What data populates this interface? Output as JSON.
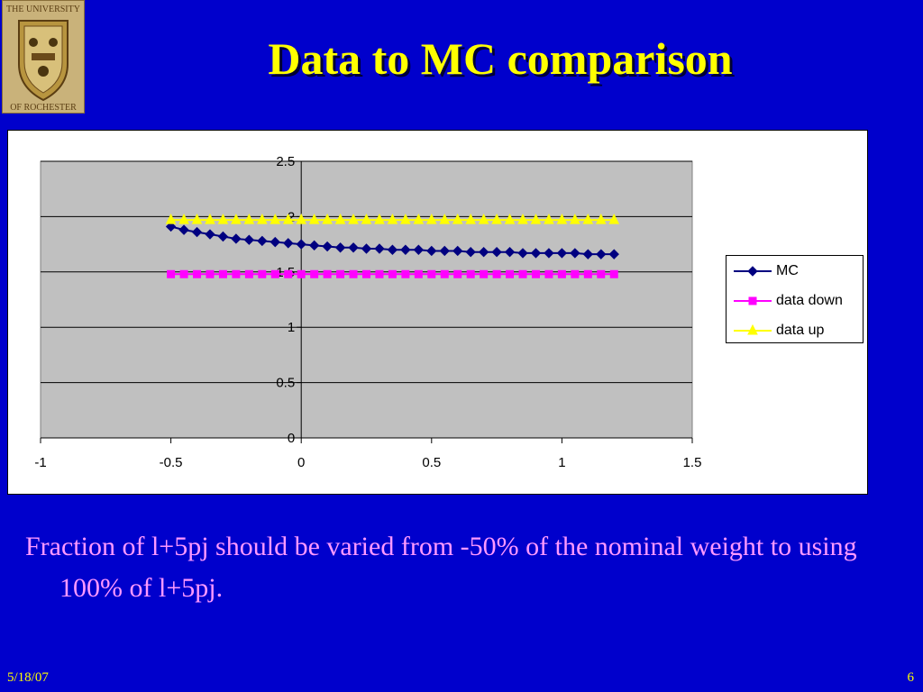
{
  "slide": {
    "title": "Data to MC comparison",
    "caption": "Fraction of l+5pj should be varied from -50% of the nominal weight to using 100% of l+5pj.",
    "date": "5/18/07",
    "page_number": "6"
  },
  "logo": {
    "top_text": "THE UNIVERSITY",
    "bottom_text": "OF ROCHESTER",
    "icon": "university-seal"
  },
  "colors": {
    "background": "#0000cc",
    "title": "#ffff00",
    "caption": "#ff99ff",
    "plot_area": "#c0c0c0",
    "mc": "#000080",
    "data_down": "#ff00ff",
    "data_up": "#ffff00"
  },
  "chart_data": {
    "type": "line",
    "title": "",
    "xlabel": "",
    "ylabel": "",
    "xlim": [
      -1,
      1.5
    ],
    "ylim": [
      0,
      2.5
    ],
    "xticks": [
      "-1",
      "-0.5",
      "0",
      "0.5",
      "1",
      "1.5"
    ],
    "yticks": [
      "0",
      "0.5",
      "1",
      "1.5",
      "2",
      "2.5"
    ],
    "grid": "horizontal",
    "legend_position": "right",
    "x": [
      -0.5,
      -0.45,
      -0.4,
      -0.35,
      -0.3,
      -0.25,
      -0.2,
      -0.15,
      -0.1,
      -0.05,
      0.0,
      0.05,
      0.1,
      0.15,
      0.2,
      0.25,
      0.3,
      0.35,
      0.4,
      0.45,
      0.5,
      0.55,
      0.6,
      0.65,
      0.7,
      0.75,
      0.8,
      0.85,
      0.9,
      0.95,
      1.0,
      1.05,
      1.1,
      1.15,
      1.2
    ],
    "series": [
      {
        "name": "MC",
        "marker": "diamond",
        "color": "#000080",
        "values": [
          1.91,
          1.88,
          1.86,
          1.84,
          1.82,
          1.8,
          1.79,
          1.78,
          1.77,
          1.76,
          1.75,
          1.74,
          1.73,
          1.72,
          1.72,
          1.71,
          1.71,
          1.7,
          1.7,
          1.7,
          1.69,
          1.69,
          1.69,
          1.68,
          1.68,
          1.68,
          1.68,
          1.67,
          1.67,
          1.67,
          1.67,
          1.67,
          1.66,
          1.66,
          1.66
        ]
      },
      {
        "name": "data down",
        "marker": "square",
        "color": "#ff00ff",
        "values": [
          1.48,
          1.48,
          1.48,
          1.48,
          1.48,
          1.48,
          1.48,
          1.48,
          1.48,
          1.48,
          1.48,
          1.48,
          1.48,
          1.48,
          1.48,
          1.48,
          1.48,
          1.48,
          1.48,
          1.48,
          1.48,
          1.48,
          1.48,
          1.48,
          1.48,
          1.48,
          1.48,
          1.48,
          1.48,
          1.48,
          1.48,
          1.48,
          1.48,
          1.48,
          1.48
        ]
      },
      {
        "name": "data up",
        "marker": "triangle",
        "color": "#ffff00",
        "values": [
          1.97,
          1.97,
          1.97,
          1.97,
          1.97,
          1.97,
          1.97,
          1.97,
          1.97,
          1.97,
          1.97,
          1.97,
          1.97,
          1.97,
          1.97,
          1.97,
          1.97,
          1.97,
          1.97,
          1.97,
          1.97,
          1.97,
          1.97,
          1.97,
          1.97,
          1.97,
          1.97,
          1.97,
          1.97,
          1.97,
          1.97,
          1.97,
          1.97,
          1.97,
          1.97
        ]
      }
    ]
  }
}
